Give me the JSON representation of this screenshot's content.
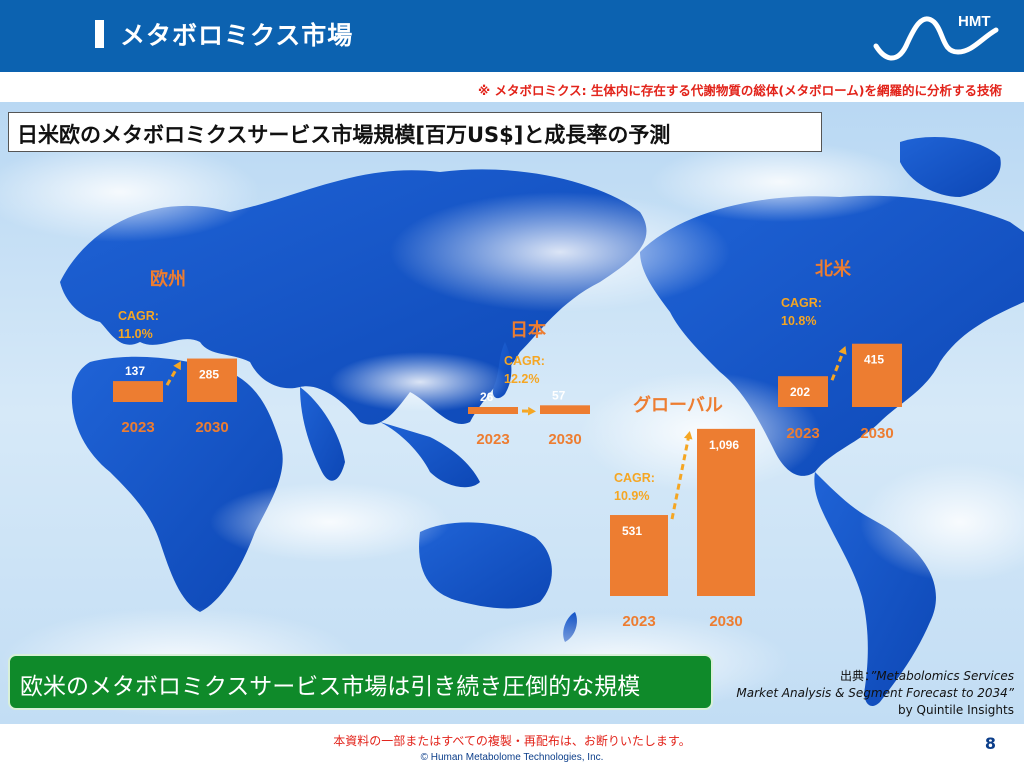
{
  "header": {
    "title": "メタボロミクス市場",
    "logo_text": "HMT"
  },
  "definition_note": "※ メタボロミクス: 生体内に存在する代謝物質の総体(メタボローム)を網羅的に分析する技術",
  "colors": {
    "header_blue": "#0c62b0",
    "bar_orange": "#ed7d31",
    "region_label_orange": "#ed7d31",
    "cagr_gold": "#f5a623",
    "summary_green": "#0f8a2a",
    "red_text": "#e2231a"
  },
  "chart_data": {
    "type": "bar",
    "title": "日米欧のメタボロミクスサービス市場規模[百万US$]と成長率の予測",
    "unit": "百万US$",
    "categories": [
      "2023",
      "2030"
    ],
    "regions": [
      {
        "id": "europe",
        "name": "欧州",
        "values": [
          137,
          285
        ],
        "labels": [
          "137",
          "285"
        ],
        "cagr_label": "CAGR:",
        "cagr": "11.0%"
      },
      {
        "id": "japan",
        "name": "日本",
        "values": [
          26,
          57
        ],
        "labels": [
          "26",
          "57"
        ],
        "cagr_label": "CAGR:",
        "cagr": "12.2%"
      },
      {
        "id": "global",
        "name": "グローバル",
        "values": [
          531,
          1096
        ],
        "labels": [
          "531",
          "1,096"
        ],
        "cagr_label": "CAGR:",
        "cagr": "10.9%"
      },
      {
        "id": "north_america",
        "name": "北米",
        "values": [
          202,
          415
        ],
        "labels": [
          "202",
          "415"
        ],
        "cagr_label": "CAGR:",
        "cagr": "10.8%"
      }
    ]
  },
  "summary": "欧米のメタボロミクスサービス市場は引き続き圧倒的な規模",
  "source": {
    "prefix": "出典：",
    "line1": "”Metabolomics Services",
    "line2": "Market Analysis & Segment Forecast to 2034”",
    "line3": "by Quintile Insights"
  },
  "footer": {
    "notice": "本資料の一部またはすべての複製・再配布は、お断りいたします。",
    "copyright": "© Human Metabolome Technologies, Inc.",
    "page": "8"
  }
}
